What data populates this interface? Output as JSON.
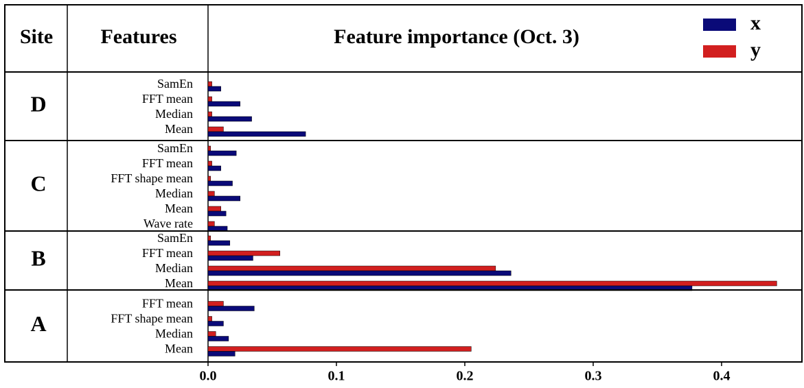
{
  "chart_data": {
    "type": "bar",
    "orientation": "horizontal",
    "headers": [
      "Site",
      "Features"
    ],
    "title": "Feature importance (Oct. 3)",
    "series": [
      {
        "name": "x",
        "color": "#0a0a78"
      },
      {
        "name": "y",
        "color": "#d21f1f"
      }
    ],
    "groups": [
      {
        "site": "D",
        "features": [
          "SamEn",
          "FFT mean",
          "Median",
          "Mean"
        ],
        "values": [
          [
            0.01,
            0.025,
            0.034,
            0.076
          ],
          [
            0.003,
            0.003,
            0.003,
            0.012
          ]
        ]
      },
      {
        "site": "C",
        "features": [
          "SamEn",
          "FFT mean",
          "FFT shape mean",
          "Median",
          "Mean",
          "Wave rate"
        ],
        "values": [
          [
            0.022,
            0.01,
            0.019,
            0.025,
            0.014,
            0.015
          ],
          [
            0.002,
            0.003,
            0.002,
            0.005,
            0.01,
            0.005
          ]
        ]
      },
      {
        "site": "B",
        "features": [
          "SamEn",
          "FFT mean",
          "Median",
          "Mean"
        ],
        "values": [
          [
            0.017,
            0.035,
            0.236,
            0.377
          ],
          [
            0.002,
            0.056,
            0.224,
            0.443
          ]
        ]
      },
      {
        "site": "A",
        "features": [
          "FFT mean",
          "FFT shape mean",
          "Median",
          "Mean"
        ],
        "values": [
          [
            0.036,
            0.012,
            0.016,
            0.021
          ],
          [
            0.012,
            0.003,
            0.006,
            0.205
          ]
        ]
      }
    ],
    "xlim": [
      0,
      0.4626
    ],
    "xticks": [
      {
        "value": 0,
        "label": "0.0"
      },
      0.1,
      0.2,
      0.3,
      0.4
    ]
  }
}
